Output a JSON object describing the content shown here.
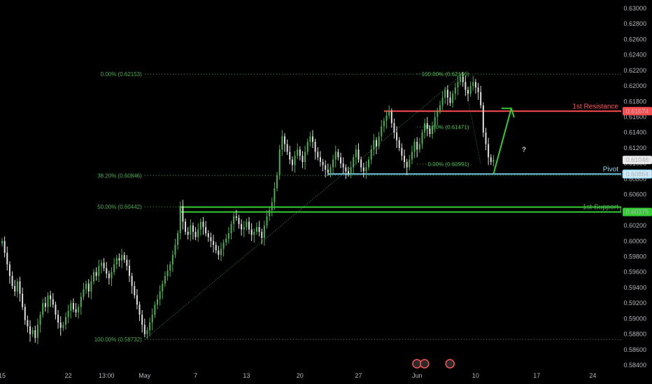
{
  "chart_data": {
    "type": "candlestick",
    "instrument_note": "",
    "y_axis": {
      "min": 0.584,
      "max": 0.63,
      "ticks": [
        "0.63000",
        "0.62800",
        "0.62600",
        "0.62400",
        "0.62200",
        "0.62000",
        "0.61800",
        "0.61600",
        "0.61400",
        "0.61200",
        "0.61000",
        "0.60800",
        "0.60600",
        "0.60400",
        "0.60200",
        "0.60000",
        "0.59800",
        "0.59600",
        "0.59400",
        "0.59200",
        "0.59000",
        "0.58800",
        "0.58600",
        "0.58400"
      ]
    },
    "x_axis": {
      "ticks": [
        {
          "label": "15",
          "bar": 0
        },
        {
          "label": "22",
          "bar": 26
        },
        {
          "label": "13:00",
          "bar": 41
        },
        {
          "label": "May",
          "bar": 56
        },
        {
          "label": "7",
          "bar": 76
        },
        {
          "label": "13",
          "bar": 96
        },
        {
          "label": "20",
          "bar": 117
        },
        {
          "label": "27",
          "bar": 140
        },
        {
          "label": "Jun",
          "bar": 163
        },
        {
          "label": "10",
          "bar": 186
        },
        {
          "label": "17",
          "bar": 210
        },
        {
          "label": "24",
          "bar": 232
        }
      ],
      "total_bars": 244
    },
    "series": [
      {
        "type": "candles",
        "close": [
          0.6,
          0.5985,
          0.597,
          0.5955,
          0.5942,
          0.5935,
          0.5948,
          0.5932,
          0.5915,
          0.5898,
          0.589,
          0.588,
          0.5885,
          0.5875,
          0.5892,
          0.5905,
          0.592,
          0.5915,
          0.593,
          0.5925,
          0.5918,
          0.5905,
          0.5895,
          0.5888,
          0.5892,
          0.5902,
          0.591,
          0.592,
          0.5912,
          0.5908,
          0.5915,
          0.5928,
          0.5938,
          0.5945,
          0.5935,
          0.5948,
          0.596,
          0.5955,
          0.5968,
          0.5972,
          0.5965,
          0.5958,
          0.5952,
          0.596,
          0.597,
          0.5978,
          0.5975,
          0.5982,
          0.5976,
          0.5968,
          0.5955,
          0.5942,
          0.593,
          0.5918,
          0.5905,
          0.5892,
          0.588,
          0.5885,
          0.5895,
          0.5905,
          0.5918,
          0.5925,
          0.5935,
          0.5945,
          0.5955,
          0.5962,
          0.597,
          0.5982,
          0.5995,
          0.601,
          0.6045,
          0.6025,
          0.6012,
          0.6008,
          0.602,
          0.6012,
          0.6005,
          0.6015,
          0.6025,
          0.6018,
          0.601,
          0.6005,
          0.6,
          0.5995,
          0.5988,
          0.5982,
          0.599,
          0.5998,
          0.6003,
          0.601,
          0.6022,
          0.6032,
          0.603,
          0.6022,
          0.6015,
          0.6018,
          0.6025,
          0.6015,
          0.6008,
          0.6012,
          0.6018,
          0.6012,
          0.6004,
          0.602,
          0.6032,
          0.604,
          0.605,
          0.6068,
          0.6085,
          0.6118,
          0.6135,
          0.6125,
          0.6115,
          0.6105,
          0.6098,
          0.611,
          0.6118,
          0.611,
          0.6102,
          0.6115,
          0.6128,
          0.6135,
          0.6128,
          0.6115,
          0.6108,
          0.6102,
          0.6098,
          0.6092,
          0.6088,
          0.6095,
          0.6105,
          0.6115,
          0.6108,
          0.61,
          0.6095,
          0.609,
          0.6087,
          0.6095,
          0.6108,
          0.6118,
          0.6105,
          0.6095,
          0.609,
          0.6095,
          0.6105,
          0.6118,
          0.613,
          0.6122,
          0.6135,
          0.6148,
          0.6155,
          0.6162,
          0.6167,
          0.6152,
          0.614,
          0.613,
          0.612,
          0.611,
          0.6102,
          0.6095,
          0.6105,
          0.6115,
          0.6128,
          0.6118,
          0.6125,
          0.614,
          0.6152,
          0.6145,
          0.6138,
          0.6148,
          0.616,
          0.6168,
          0.6175,
          0.6185,
          0.6195,
          0.6185,
          0.6178,
          0.619,
          0.6198,
          0.6205,
          0.6212,
          0.6205,
          0.6195,
          0.619,
          0.62,
          0.6205,
          0.6198,
          0.6192,
          0.6175,
          0.614,
          0.6125,
          0.6108,
          0.6102,
          0.6105
        ]
      }
    ],
    "fibonacci": [
      {
        "label": "0.00% (0.62153)",
        "value": 0.62153
      },
      {
        "label": "38.20% (0.60846)",
        "value": 0.60846
      },
      {
        "label": "50.00% (0.60442)",
        "value": 0.60442
      },
      {
        "label": "100.00% (0.58732)",
        "value": 0.58732
      },
      {
        "label": "100.00% (0.62156)",
        "value": 0.62156
      },
      {
        "label": "61.80% (0.61471)",
        "value": 0.61471
      },
      {
        "label": "0.00% (0.60991)",
        "value": 0.60991
      }
    ],
    "levels": [
      {
        "name": "1st Resistance",
        "value": 0.61674,
        "price_label": "0.61674",
        "color": "#ff4d4d",
        "text_color": "#ff5252"
      },
      {
        "name": "Pivot",
        "value": 0.60864,
        "price_label": "0.60864",
        "color": "#6fc9e0",
        "text_color": "#89d8f0"
      },
      {
        "name": "1st Support",
        "value": 0.60375,
        "price_label": "0.60375",
        "color": "#33cc33",
        "text_color": "#4caf50"
      }
    ],
    "current_price": {
      "value": 0.61046,
      "label": "0.61046"
    },
    "annotation_symbol": "?",
    "colors": {
      "up": "#4caf50",
      "down": "#e0e0e0",
      "background": "#000000",
      "fib": "#4caf50",
      "arrow": "#33cc33"
    }
  }
}
